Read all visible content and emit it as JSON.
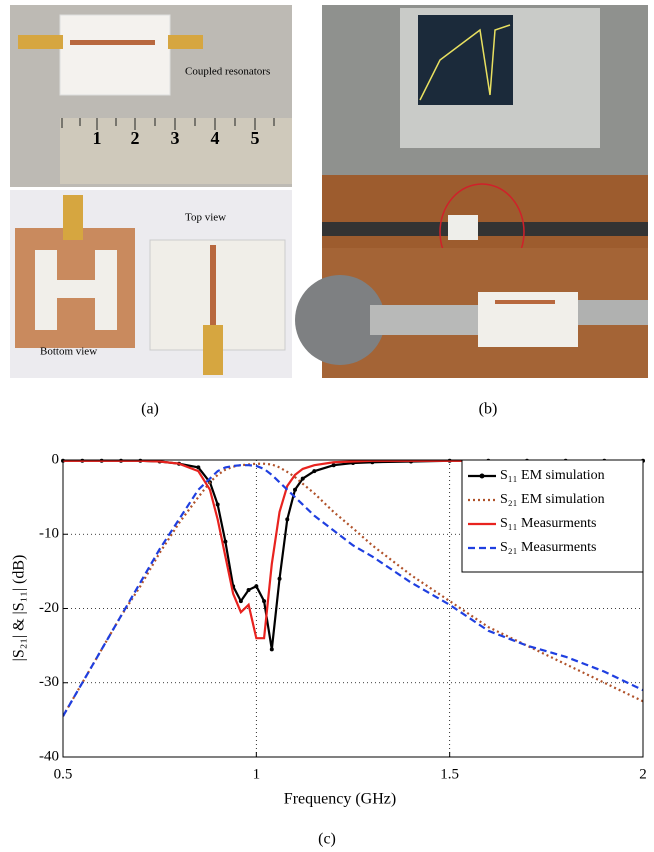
{
  "figure": {
    "panels": [
      {
        "label": "(a)",
        "annotations": [
          "Coupled resonators",
          "Top view",
          "Bottom view"
        ],
        "ruler_marks": [
          "1",
          "2",
          "3",
          "4",
          "5"
        ]
      },
      {
        "label": "(b)"
      }
    ]
  },
  "chart_data": {
    "type": "line",
    "panel_label": "(c)",
    "xlabel": "Frequency (GHz)",
    "ylabel": "|S₂₁| & |S₁₁| (dB)",
    "x": [
      0.5,
      0.55,
      0.6,
      0.65,
      0.7,
      0.75,
      0.8,
      0.85,
      0.88,
      0.9,
      0.92,
      0.94,
      0.96,
      0.98,
      1.0,
      1.02,
      1.04,
      1.06,
      1.08,
      1.1,
      1.12,
      1.15,
      1.2,
      1.25,
      1.3,
      1.4,
      1.5,
      1.6,
      1.7,
      1.8,
      1.9,
      2.0
    ],
    "series": [
      {
        "name": "S₁₁ EM simulation",
        "color": "#000000",
        "line_style": "solid",
        "marker": "dot",
        "values": [
          -0.1,
          -0.1,
          -0.1,
          -0.1,
          -0.1,
          -0.2,
          -0.5,
          -1,
          -3,
          -6,
          -11,
          -17,
          -19,
          -17.5,
          -17,
          -19,
          -25.5,
          -16,
          -8,
          -4,
          -2.5,
          -1.5,
          -0.7,
          -0.4,
          -0.3,
          -0.2,
          -0.1,
          -0.1,
          -0.1,
          -0.1,
          -0.1,
          -0.1
        ]
      },
      {
        "name": "S₂₁ EM simulation",
        "color": "#b0522a",
        "line_style": "dotted",
        "marker": "none",
        "values": [
          -34.5,
          -30,
          -25.5,
          -21,
          -17,
          -12.5,
          -8.5,
          -5,
          -3,
          -2,
          -1.3,
          -0.9,
          -0.7,
          -0.6,
          -0.5,
          -0.5,
          -0.6,
          -1,
          -1.6,
          -2.3,
          -3.2,
          -4.5,
          -7,
          -9.2,
          -11.5,
          -15.5,
          -19,
          -22.5,
          -25,
          -27.5,
          -30,
          -32.5
        ]
      },
      {
        "name": "S₁₁ Measurments",
        "color": "#e8231f",
        "line_style": "solid",
        "marker": "none",
        "values": [
          -0.1,
          -0.1,
          -0.1,
          -0.1,
          -0.1,
          -0.2,
          -0.5,
          -1.5,
          -4,
          -8,
          -13,
          -18,
          -20.5,
          -19.5,
          -24,
          -24,
          -14,
          -7,
          -3.5,
          -2,
          -1.2,
          -0.7,
          -0.3,
          -0.2,
          -0.1,
          -0.1,
          -0.1,
          -0.1,
          -0.1,
          -0.1,
          -0.1,
          -0.1
        ]
      },
      {
        "name": "S₂₁ Measurments",
        "color": "#1f3fe0",
        "line_style": "dashed",
        "marker": "none",
        "values": [
          -34.5,
          -30,
          -25.5,
          -21,
          -16.5,
          -12,
          -8,
          -4,
          -2.5,
          -1.5,
          -1,
          -0.8,
          -0.7,
          -0.7,
          -0.8,
          -1.2,
          -2,
          -3,
          -4,
          -5,
          -6,
          -7.5,
          -9.5,
          -11.5,
          -13,
          -16.5,
          -19.5,
          -23,
          -25,
          -26.5,
          -28.5,
          -31
        ]
      }
    ],
    "xlim": [
      0.5,
      2
    ],
    "ylim": [
      -40,
      0
    ],
    "xticks": [
      0.5,
      1,
      1.5,
      2
    ],
    "yticks": [
      0,
      -10,
      -20,
      -30,
      -40
    ],
    "grid": true,
    "legend": "upper right"
  }
}
